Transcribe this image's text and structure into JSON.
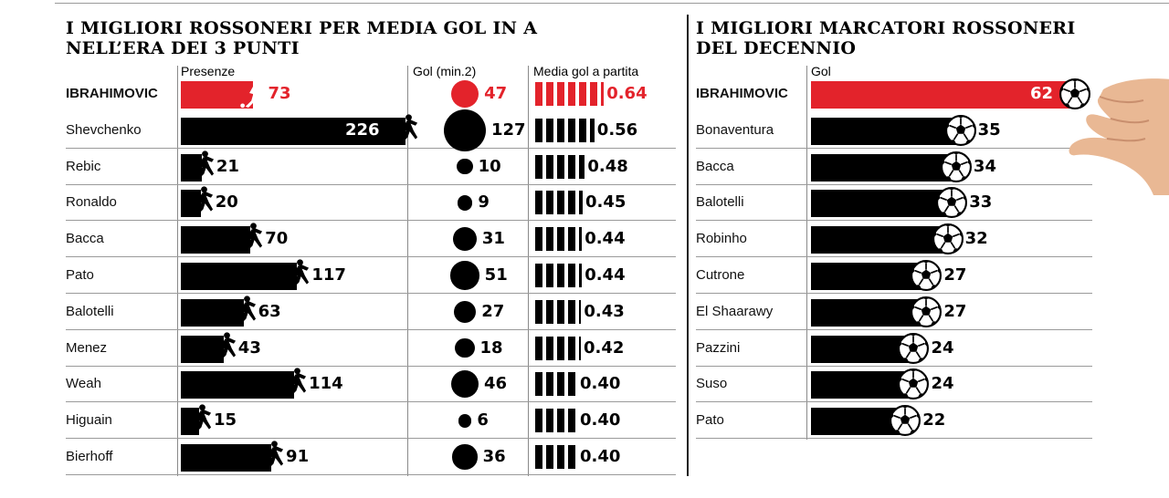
{
  "colors": {
    "highlight": "#e3232b",
    "bar": "#000000"
  },
  "icons": [
    "player-kicking-icon",
    "soccer-ball-icon",
    "hand-icon"
  ],
  "left": {
    "title_lines": [
      "I MIGLIORI ROSSONERI PER MEDIA GOL IN A",
      "NELL’ERA DEI 3 PUNTI"
    ],
    "col_presenze": "Presenze",
    "col_gol": "Gol (min.2)",
    "col_media": "Media gol a partita"
  },
  "right": {
    "title_lines": [
      "I MIGLIORI MARCATORI ROSSONERI",
      "DEL DECENNIO"
    ],
    "col_gol": "Gol"
  },
  "chart_data": [
    {
      "type": "bar",
      "title": "I MIGLIORI ROSSONERI PER MEDIA GOL IN A NELL’ERA DEI 3 PUNTI",
      "categories": [
        "IBRAHIMOVIC",
        "Shevchenko",
        "Rebic",
        "Ronaldo",
        "Bacca",
        "Pato",
        "Balotelli",
        "Menez",
        "Weah",
        "Higuain",
        "Bierhoff"
      ],
      "highlight_index": 0,
      "series": [
        {
          "name": "Presenze",
          "values": [
            73,
            226,
            21,
            20,
            70,
            117,
            63,
            43,
            114,
            15,
            91
          ],
          "labels": [
            "73",
            "226",
            "21",
            "20",
            "70",
            "117",
            "63",
            "43",
            "114",
            "15",
            "91"
          ]
        },
        {
          "name": "Gol (min.2)",
          "values": [
            47,
            127,
            10,
            9,
            31,
            51,
            27,
            18,
            46,
            6,
            36
          ],
          "labels": [
            "47",
            "127",
            "10",
            "9",
            "31",
            "51",
            "27",
            "18",
            "46",
            "6",
            "36"
          ]
        },
        {
          "name": "Media gol a partita",
          "values": [
            0.64,
            0.56,
            0.48,
            0.45,
            0.44,
            0.44,
            0.43,
            0.42,
            0.4,
            0.4,
            0.4
          ],
          "labels": [
            "0.64",
            "0.56",
            "0.48",
            "0.45",
            "0.44",
            "0.44",
            "0.43",
            "0.42",
            "0.40",
            "0.40",
            "0.40"
          ]
        }
      ]
    },
    {
      "type": "bar",
      "title": "I MIGLIORI MARCATORI ROSSONERI DEL DECENNIO",
      "categories": [
        "IBRAHIMOVIC",
        "Bonaventura",
        "Bacca",
        "Balotelli",
        "Robinho",
        "Cutrone",
        "El Shaarawy",
        "Pazzini",
        "Suso",
        "Pato"
      ],
      "highlight_index": 0,
      "series": [
        {
          "name": "Gol",
          "values": [
            62,
            35,
            34,
            33,
            32,
            27,
            27,
            24,
            24,
            22
          ],
          "labels": [
            "62",
            "35",
            "34",
            "33",
            "32",
            "27",
            "27",
            "24",
            "24",
            "22"
          ]
        }
      ]
    }
  ]
}
